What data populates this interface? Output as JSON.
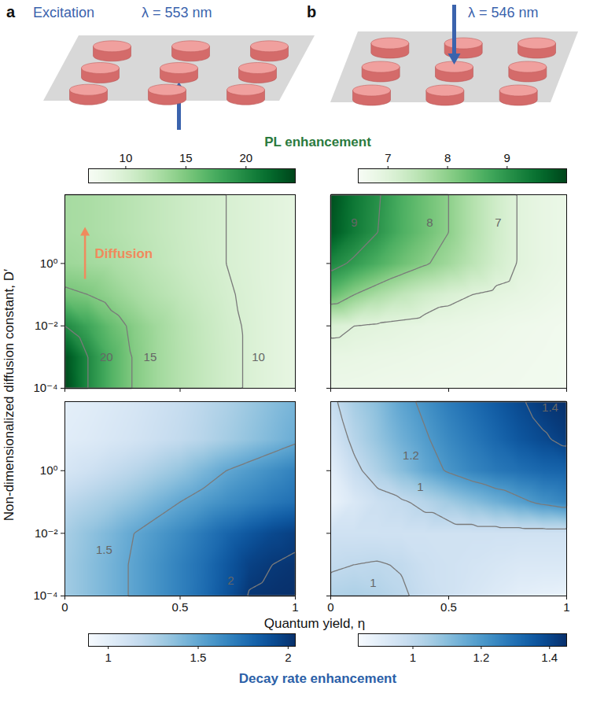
{
  "chart_data": {
    "type": "heatmap",
    "log": "y",
    "x_label": "Quantum yield, η",
    "y_label": "Non-dimensionalized diffusion constant, D′",
    "xlim": [
      0,
      1
    ],
    "xticks": [
      0,
      0.5,
      1
    ],
    "ylim": [
      0.0001,
      160
    ],
    "yticks": [
      {
        "value": 0.0001,
        "label": "10⁻⁴"
      },
      {
        "value": 0.01,
        "label": "10⁻²"
      },
      {
        "value": 1,
        "label": "10⁰"
      }
    ],
    "x": [
      0,
      0.1,
      0.2,
      0.3,
      0.4,
      0.5,
      0.6,
      0.7,
      0.8,
      0.9,
      1
    ],
    "y": [
      0.0001,
      0.001,
      0.01,
      0.1,
      1,
      10,
      160
    ],
    "columns": [
      {
        "letter": "a",
        "texts": [
          {
            "text": "Excitation",
            "color": "#3b63ad"
          },
          {
            "text": "λ = 553 nm",
            "color": "#3b63ad"
          }
        ]
      },
      {
        "letter": "b",
        "texts": [
          {
            "text": "λ = 546 nm",
            "color": "#3b63ad"
          }
        ]
      }
    ],
    "rows": [
      {
        "colorbar_title": {
          "text": "PL enhancement",
          "color": "#2a7a3d"
        }
      },
      {
        "colorbar_title": {
          "text": "Decay rate enhancement",
          "color": "#2b5fa8"
        }
      }
    ],
    "panels": [
      {
        "row": 0,
        "column": 0,
        "tick_labels": "y",
        "colorbar": {
          "range": [
            6.9,
            24.1
          ],
          "ticks": [
            10,
            15,
            20
          ],
          "color": "greens"
        },
        "values": [
          [
            24,
            20,
            17,
            14.8,
            13.3,
            12.2,
            11.3,
            10.5,
            9.8,
            9.2,
            8.7
          ],
          [
            23.5,
            20,
            17,
            14.8,
            13.3,
            12.2,
            11.3,
            10.5,
            9.8,
            9.2,
            8.7
          ],
          [
            20,
            18,
            16,
            14.5,
            13.2,
            12.1,
            11.2,
            10.4,
            9.8,
            9.2,
            8.7
          ],
          [
            15.5,
            15,
            14,
            13,
            12.2,
            11.5,
            10.8,
            10.2,
            9.7,
            9.2,
            8.7
          ],
          [
            13.5,
            13.2,
            12.8,
            12.2,
            11.6,
            11,
            10.5,
            10,
            9.6,
            9.2,
            8.8
          ],
          [
            13,
            12.8,
            12.4,
            11.9,
            11.4,
            10.9,
            10.4,
            10,
            9.6,
            9.2,
            8.8
          ],
          [
            13,
            12.8,
            12.4,
            11.9,
            11.4,
            10.9,
            10.4,
            10,
            9.6,
            9.2,
            8.8
          ]
        ],
        "contours": [
          10,
          15,
          20
        ],
        "contour_labels": [
          {
            "text": "20",
            "x": 0.18,
            "y": 0.001
          },
          {
            "text": "15",
            "x": 0.37,
            "y": 0.001
          },
          {
            "text": "10",
            "x": 0.84,
            "y": 0.001
          }
        ],
        "annotations": [
          {
            "text": "Diffusion",
            "x": 0.13,
            "y": 2,
            "color": "#f08a5d"
          }
        ]
      },
      {
        "row": 0,
        "column": 1,
        "tick_labels": false,
        "colorbar": {
          "range": [
            6.5,
            10
          ],
          "ticks": [
            7,
            8,
            9
          ],
          "color": "greens"
        },
        "values": [
          [
            6.75,
            6.74,
            6.72,
            6.7,
            6.69,
            6.68,
            6.67,
            6.66,
            6.65,
            6.64,
            6.63
          ],
          [
            6.85,
            6.83,
            6.8,
            6.78,
            6.75,
            6.73,
            6.71,
            6.69,
            6.67,
            6.65,
            6.63
          ],
          [
            7.1,
            7,
            6.95,
            6.9,
            6.85,
            6.82,
            6.78,
            6.74,
            6.7,
            6.67,
            6.64
          ],
          [
            8.4,
            8,
            7.7,
            7.45,
            7.25,
            7.1,
            7,
            6.92,
            6.85,
            6.78,
            6.72
          ],
          [
            9.2,
            8.9,
            8.6,
            8.3,
            8.05,
            7.8,
            7.5,
            7.2,
            6.97,
            6.85,
            6.78
          ],
          [
            9.8,
            9.35,
            9,
            8.6,
            8.3,
            8,
            7.6,
            7.25,
            6.97,
            6.85,
            6.78
          ],
          [
            9.9,
            9.4,
            9.05,
            8.62,
            8.3,
            8,
            7.6,
            7.25,
            6.97,
            6.85,
            6.78
          ]
        ],
        "contours": [
          7,
          8,
          9
        ],
        "contour_labels": [
          {
            "text": "9",
            "x": 0.1,
            "y": 20
          },
          {
            "text": "8",
            "x": 0.42,
            "y": 20
          },
          {
            "text": "7",
            "x": 0.71,
            "y": 20
          }
        ]
      },
      {
        "row": 1,
        "column": 0,
        "tick_labels": true,
        "colorbar": {
          "range": [
            0.89,
            2.04
          ],
          "ticks": [
            1,
            1.5,
            2
          ],
          "color": "blues"
        },
        "values": [
          [
            1.3,
            1.37,
            1.44,
            1.52,
            1.6,
            1.68,
            1.77,
            1.88,
            2.01,
            2.03,
            2.04
          ],
          [
            1.3,
            1.37,
            1.44,
            1.52,
            1.6,
            1.68,
            1.76,
            1.86,
            1.96,
            2,
            2.02
          ],
          [
            1.28,
            1.35,
            1.42,
            1.5,
            1.57,
            1.64,
            1.72,
            1.8,
            1.87,
            1.93,
            1.97
          ],
          [
            1.2,
            1.25,
            1.3,
            1.36,
            1.43,
            1.5,
            1.56,
            1.62,
            1.67,
            1.72,
            1.76
          ],
          [
            1.08,
            1.12,
            1.17,
            1.22,
            1.28,
            1.34,
            1.42,
            1.5,
            1.56,
            1.62,
            1.68
          ],
          [
            1.02,
            1.04,
            1.07,
            1.1,
            1.14,
            1.18,
            1.23,
            1.29,
            1.35,
            1.41,
            1.47
          ],
          [
            1,
            1.02,
            1.05,
            1.08,
            1.12,
            1.16,
            1.21,
            1.26,
            1.32,
            1.38,
            1.43
          ]
        ],
        "contours": [
          1.5,
          2
        ],
        "contour_labels": [
          {
            "text": "1.5",
            "x": 0.17,
            "y": 0.003
          },
          {
            "text": "2",
            "x": 0.72,
            "y": 0.0003
          }
        ]
      },
      {
        "row": 1,
        "column": 1,
        "tick_labels": "x",
        "colorbar": {
          "range": [
            0.84,
            1.45
          ],
          "ticks": [
            1,
            1.2,
            1.4
          ],
          "color": "blues"
        },
        "values": [
          [
            1.03,
            1.04,
            1.03,
            1.01,
            0.98,
            0.96,
            0.94,
            0.92,
            0.9,
            0.89,
            0.88
          ],
          [
            0.99,
            1,
            1.005,
            0.995,
            0.97,
            0.96,
            0.95,
            0.94,
            0.93,
            0.93,
            0.93
          ],
          [
            0.96,
            0.96,
            0.96,
            0.96,
            0.96,
            0.96,
            0.96,
            0.96,
            0.96,
            0.96,
            0.96
          ],
          [
            0.88,
            0.93,
            0.97,
            0.99,
            1.02,
            1.06,
            1.1,
            1.14,
            1.18,
            1.22,
            1.25
          ],
          [
            0.9,
            0.98,
            1.04,
            1.1,
            1.16,
            1.21,
            1.25,
            1.28,
            1.3,
            1.32,
            1.33
          ],
          [
            0.94,
            1.02,
            1.08,
            1.14,
            1.19,
            1.24,
            1.28,
            1.32,
            1.36,
            1.39,
            1.42
          ],
          [
            0.98,
            1.05,
            1.1,
            1.17,
            1.22,
            1.27,
            1.31,
            1.35,
            1.39,
            1.43,
            1.45
          ]
        ],
        "contours": [
          1,
          1.2,
          1.4
        ],
        "contour_labels": [
          {
            "text": "1",
            "x": 0.38,
            "y": 0.3
          },
          {
            "text": "1.2",
            "x": 0.34,
            "y": 3
          },
          {
            "text": "1.4",
            "x": 0.93,
            "y": 100
          },
          {
            "text": "1",
            "x": 0.18,
            "y": 0.00025
          }
        ]
      }
    ]
  }
}
